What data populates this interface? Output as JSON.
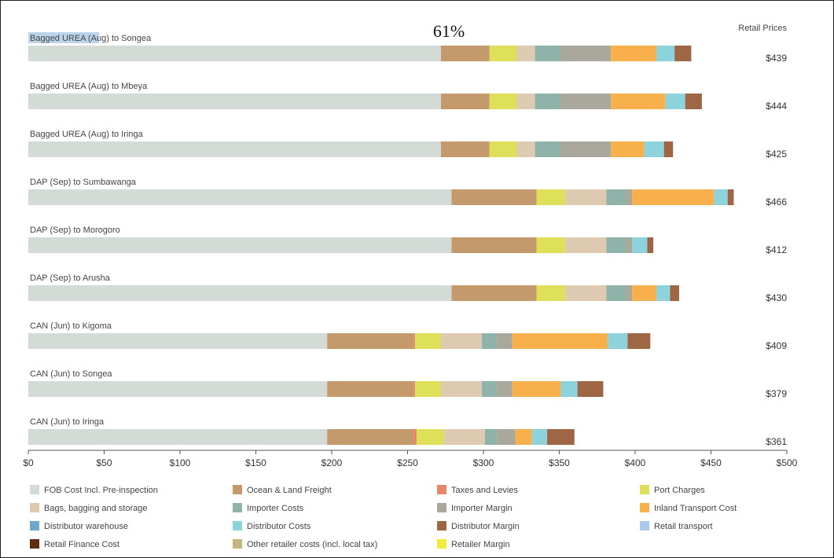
{
  "chart_data": {
    "type": "bar",
    "orientation": "horizontal",
    "stacked": true,
    "annotation": "61%",
    "price_header": "Retail Prices",
    "xlim": [
      0,
      500
    ],
    "x_ticks": [
      "$0",
      "$50",
      "$100",
      "$150",
      "$200",
      "$250",
      "$300",
      "$350",
      "$400",
      "$450",
      "$500"
    ],
    "grid": false,
    "legend_position": "bottom",
    "components": [
      {
        "name": "FOB Cost Incl. Pre-inspection",
        "color": "#d3dbd7"
      },
      {
        "name": "Ocean & Land Freight",
        "color": "#c49a6c"
      },
      {
        "name": "Taxes and Levies",
        "color": "#e8866a"
      },
      {
        "name": "Port Charges",
        "color": "#dfe05a"
      },
      {
        "name": "Bags, bagging and storage",
        "color": "#decab0"
      },
      {
        "name": "Importer Costs",
        "color": "#8fb3a8"
      },
      {
        "name": "Importer Margin",
        "color": "#aaa79b"
      },
      {
        "name": "Inland Transport Cost",
        "color": "#f7b04c"
      },
      {
        "name": "Distributor warehouse",
        "color": "#6fa7c6"
      },
      {
        "name": "Distributor Costs",
        "color": "#8dd3dc"
      },
      {
        "name": "Distributor Margin",
        "color": "#9e6645"
      },
      {
        "name": "Retail transport",
        "color": "#a8c8ec"
      },
      {
        "name": "Retail Finance Cost",
        "color": "#5c2c13"
      },
      {
        "name": "Other retailer costs (incl. local tax)",
        "color": "#c4b67c"
      },
      {
        "name": "Retailer Margin",
        "color": "#f5ea3f"
      }
    ],
    "rows": [
      {
        "label": "Bagged UREA  (Aug) to Songea",
        "price": "$439",
        "values": [
          272,
          32,
          0,
          18,
          12,
          17,
          33,
          30,
          0,
          12,
          11,
          0,
          0,
          0,
          0
        ]
      },
      {
        "label": "Bagged UREA  (Aug) to Mbeya",
        "price": "$444",
        "values": [
          272,
          32,
          0,
          18,
          12,
          17,
          33,
          36,
          0,
          13,
          11,
          0,
          0,
          0,
          0
        ]
      },
      {
        "label": "Bagged UREA  (Aug) to Iringa",
        "price": "$425",
        "values": [
          272,
          32,
          0,
          18,
          12,
          17,
          33,
          22,
          0,
          13,
          6,
          0,
          0,
          0,
          0
        ]
      },
      {
        "label": "DAP  (Sep) to Sumbawanga",
        "price": "$466",
        "values": [
          279,
          56,
          0,
          19,
          27,
          13,
          4,
          54,
          0,
          9,
          4,
          0,
          0,
          0,
          0
        ]
      },
      {
        "label": "DAP  (Sep) to Morogoro",
        "price": "$412",
        "values": [
          279,
          56,
          0,
          19,
          27,
          13,
          4,
          0,
          0,
          10,
          4,
          0,
          0,
          0,
          0
        ]
      },
      {
        "label": "DAP  (Sep) to Arusha",
        "price": "$430",
        "values": [
          279,
          56,
          0,
          19,
          27,
          13,
          4,
          16,
          0,
          9,
          6,
          0,
          0,
          0,
          0
        ]
      },
      {
        "label": "CAN  (Jun) to Kigoma",
        "price": "$409",
        "values": [
          197,
          57,
          1,
          17,
          27,
          10,
          10,
          63,
          0,
          13,
          15,
          0,
          0,
          0,
          0
        ]
      },
      {
        "label": "CAN  (Jun) to Songea",
        "price": "$379",
        "values": [
          197,
          57,
          1,
          17,
          27,
          10,
          10,
          32,
          0,
          11,
          17,
          0,
          0,
          0,
          0
        ]
      },
      {
        "label": "CAN  (Jun) to Iringa",
        "price": "$361",
        "values": [
          197,
          57,
          2,
          18,
          27,
          8,
          12,
          11,
          0,
          10,
          18,
          0,
          0,
          0,
          0
        ]
      }
    ]
  }
}
